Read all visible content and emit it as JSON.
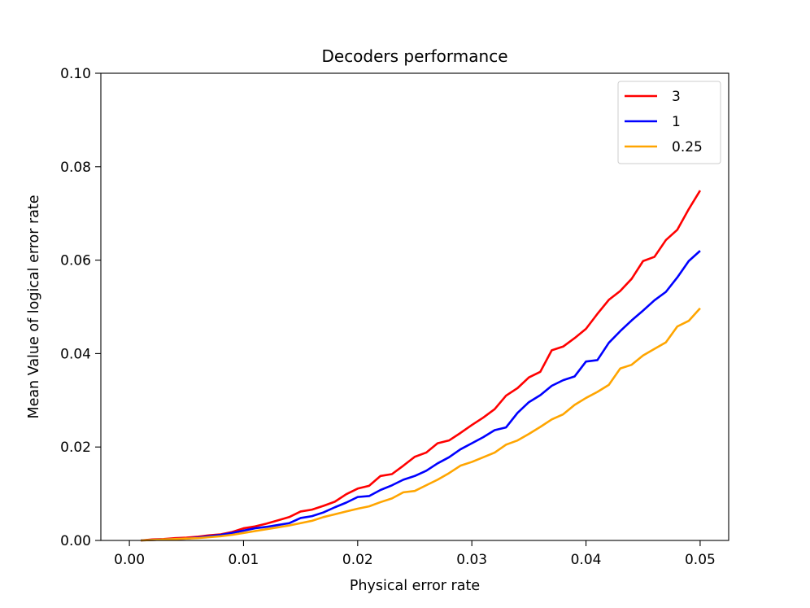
{
  "chart_data": {
    "type": "line",
    "title": "Decoders performance",
    "xlabel": "Physical error rate",
    "ylabel": "Mean Value of logical error rate",
    "xlim": [
      -0.0025,
      0.0525
    ],
    "ylim": [
      0.0,
      0.1
    ],
    "xticks": [
      0.0,
      0.01,
      0.02,
      0.03,
      0.04,
      0.05
    ],
    "xtick_labels": [
      "0.00",
      "0.01",
      "0.02",
      "0.03",
      "0.04",
      "0.05"
    ],
    "yticks": [
      0.0,
      0.02,
      0.04,
      0.06,
      0.08,
      0.1
    ],
    "ytick_labels": [
      "0.00",
      "0.02",
      "0.04",
      "0.06",
      "0.08",
      "0.10"
    ],
    "grid": false,
    "legend_position": "top-right",
    "x": [
      0.001,
      0.002,
      0.003,
      0.004,
      0.005,
      0.006,
      0.007,
      0.008,
      0.009,
      0.01,
      0.011,
      0.012,
      0.013,
      0.014,
      0.015,
      0.016,
      0.017,
      0.018,
      0.019,
      0.02,
      0.021,
      0.022,
      0.023,
      0.024,
      0.025,
      0.026,
      0.027,
      0.028,
      0.029,
      0.03,
      0.031,
      0.032,
      0.033,
      0.034,
      0.035,
      0.036,
      0.037,
      0.038,
      0.039,
      0.04,
      0.041,
      0.042,
      0.043,
      0.044,
      0.045,
      0.046,
      0.047,
      0.048,
      0.049,
      0.05
    ],
    "series": [
      {
        "name": "3",
        "color": "#ff0000",
        "values": [
          0.0,
          0.0002,
          0.0003,
          0.0005,
          0.0006,
          0.0008,
          0.0011,
          0.0013,
          0.0018,
          0.0026,
          0.003,
          0.0036,
          0.0043,
          0.005,
          0.0062,
          0.0066,
          0.0074,
          0.0083,
          0.0099,
          0.0111,
          0.0117,
          0.0138,
          0.0142,
          0.016,
          0.0179,
          0.0188,
          0.0208,
          0.0214,
          0.023,
          0.0247,
          0.0263,
          0.0281,
          0.031,
          0.0326,
          0.0349,
          0.0361,
          0.0407,
          0.0415,
          0.0433,
          0.0453,
          0.0485,
          0.0515,
          0.0534,
          0.056,
          0.0598,
          0.0607,
          0.0643,
          0.0665,
          0.0709,
          0.0749
        ]
      },
      {
        "name": "1",
        "color": "#0000ff",
        "values": [
          0.0,
          0.0001,
          0.0002,
          0.0003,
          0.0004,
          0.0006,
          0.0009,
          0.0012,
          0.0016,
          0.0021,
          0.0026,
          0.0029,
          0.0033,
          0.0037,
          0.0048,
          0.0052,
          0.006,
          0.0071,
          0.0081,
          0.0093,
          0.0095,
          0.0108,
          0.0118,
          0.013,
          0.0138,
          0.0149,
          0.0165,
          0.0178,
          0.0195,
          0.0208,
          0.0221,
          0.0236,
          0.0242,
          0.0273,
          0.0296,
          0.0311,
          0.0331,
          0.0343,
          0.0351,
          0.0383,
          0.0386,
          0.0423,
          0.0448,
          0.0471,
          0.0492,
          0.0514,
          0.0532,
          0.0563,
          0.0598,
          0.062
        ]
      },
      {
        "name": "0.25",
        "color": "#ffa500",
        "values": [
          0.0,
          0.0001,
          0.0002,
          0.0003,
          0.0004,
          0.0005,
          0.0007,
          0.0009,
          0.0012,
          0.0016,
          0.002,
          0.0024,
          0.0028,
          0.0032,
          0.0037,
          0.0042,
          0.005,
          0.0056,
          0.0062,
          0.0068,
          0.0073,
          0.0082,
          0.009,
          0.0103,
          0.0106,
          0.0118,
          0.013,
          0.0144,
          0.016,
          0.0168,
          0.0178,
          0.0188,
          0.0205,
          0.0214,
          0.0228,
          0.0243,
          0.0259,
          0.027,
          0.029,
          0.0305,
          0.0318,
          0.0333,
          0.0368,
          0.0376,
          0.0396,
          0.041,
          0.0424,
          0.0458,
          0.047,
          0.0497
        ]
      }
    ]
  }
}
